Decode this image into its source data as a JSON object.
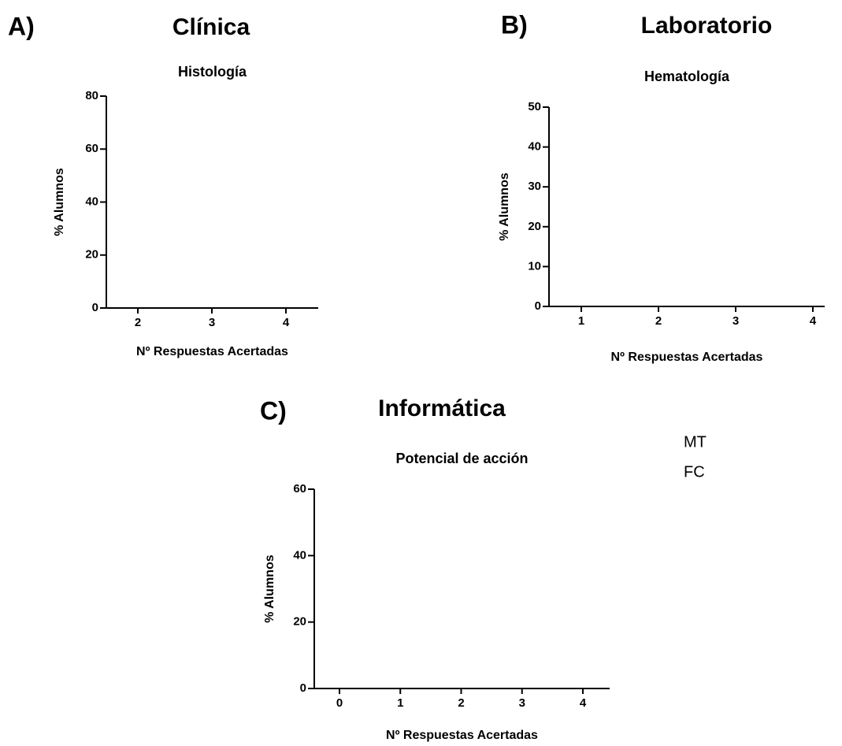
{
  "chart_data": [
    {
      "type": "bar",
      "panel": "A)",
      "title": "Clínica",
      "subtitle": "Histología",
      "xlabel": "Nº Respuestas Acertadas",
      "ylabel": "% Alumnos",
      "categories": [
        2,
        3,
        4
      ],
      "ylim": [
        0,
        80
      ],
      "yticks": [
        0,
        20,
        40,
        60,
        80
      ]
    },
    {
      "type": "bar",
      "panel": "B)",
      "title": "Laboratorio",
      "subtitle": "Hematología",
      "xlabel": "Nº Respuestas Acertadas",
      "ylabel": "% Alumnos",
      "categories": [
        1,
        2,
        3,
        4
      ],
      "ylim": [
        0,
        50
      ],
      "yticks": [
        0,
        10,
        20,
        30,
        40,
        50
      ]
    },
    {
      "type": "bar",
      "panel": "C)",
      "title": "Informática",
      "subtitle": "Potencial de acción",
      "xlabel": "Nº Respuestas Acertadas",
      "ylabel": "% Alumnos",
      "categories": [
        0,
        1,
        2,
        3,
        4
      ],
      "ylim": [
        0,
        60
      ],
      "yticks": [
        0,
        20,
        40,
        60
      ]
    }
  ],
  "legend": [
    "MT",
    "FC"
  ]
}
